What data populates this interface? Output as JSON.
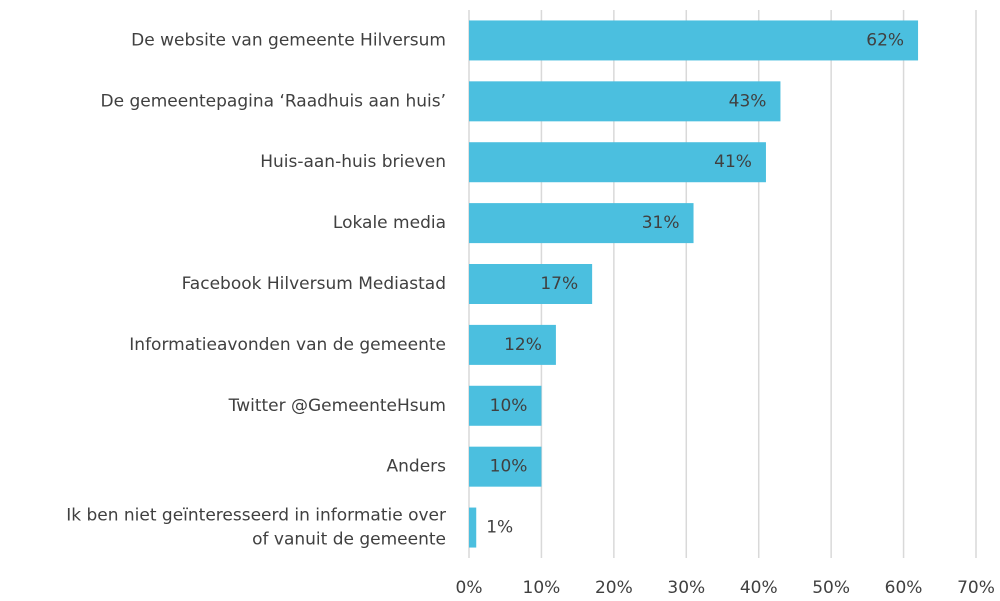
{
  "chart_data": {
    "type": "bar",
    "orientation": "horizontal",
    "categories": [
      "De website van gemeente Hilversum",
      "De gemeentepagina ‘Raadhuis aan huis’",
      "Huis-aan-huis brieven",
      "Lokale media",
      "Facebook Hilversum Mediastad",
      "Informatieavonden van de gemeente",
      "Twitter @GemeenteHsum",
      "Anders",
      "Ik ben niet geïnteresseerd in informatie over\nof vanuit de gemeente"
    ],
    "values": [
      62,
      43,
      41,
      31,
      17,
      12,
      10,
      10,
      1
    ],
    "value_labels": [
      "62%",
      "43%",
      "41%",
      "31%",
      "17%",
      "12%",
      "10%",
      "10%",
      "1%"
    ],
    "color": "#4bbfdf",
    "xlim": [
      0,
      70
    ],
    "xticks": [
      {
        "value": 0,
        "label": "0%"
      },
      {
        "value": 10,
        "label": "10%"
      },
      {
        "value": 20,
        "label": "20%"
      },
      {
        "value": 30,
        "label": "30%"
      },
      {
        "value": 40,
        "label": "40%"
      },
      {
        "value": 50,
        "label": "50%"
      },
      {
        "value": 60,
        "label": "60%"
      },
      {
        "value": 70,
        "label": "70%"
      }
    ],
    "grid": true
  }
}
